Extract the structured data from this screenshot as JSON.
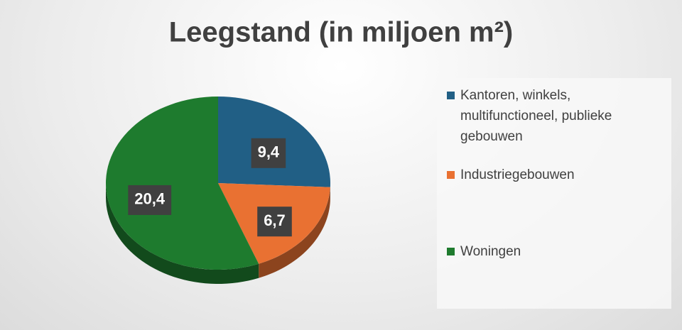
{
  "chart_data": {
    "type": "pie",
    "title": "Leegstand (in miljoen m²)",
    "categories": [
      "Kantoren, winkels, multifunctioneel, publieke gebouwen",
      "Industriegebouwen",
      "Woningen"
    ],
    "values": [
      9.4,
      6.7,
      20.4
    ],
    "value_labels": [
      "9,4",
      "6,7",
      "20,4"
    ],
    "colors": [
      "#215f85",
      "#e97132",
      "#1e7b2e"
    ],
    "legend": "right"
  }
}
